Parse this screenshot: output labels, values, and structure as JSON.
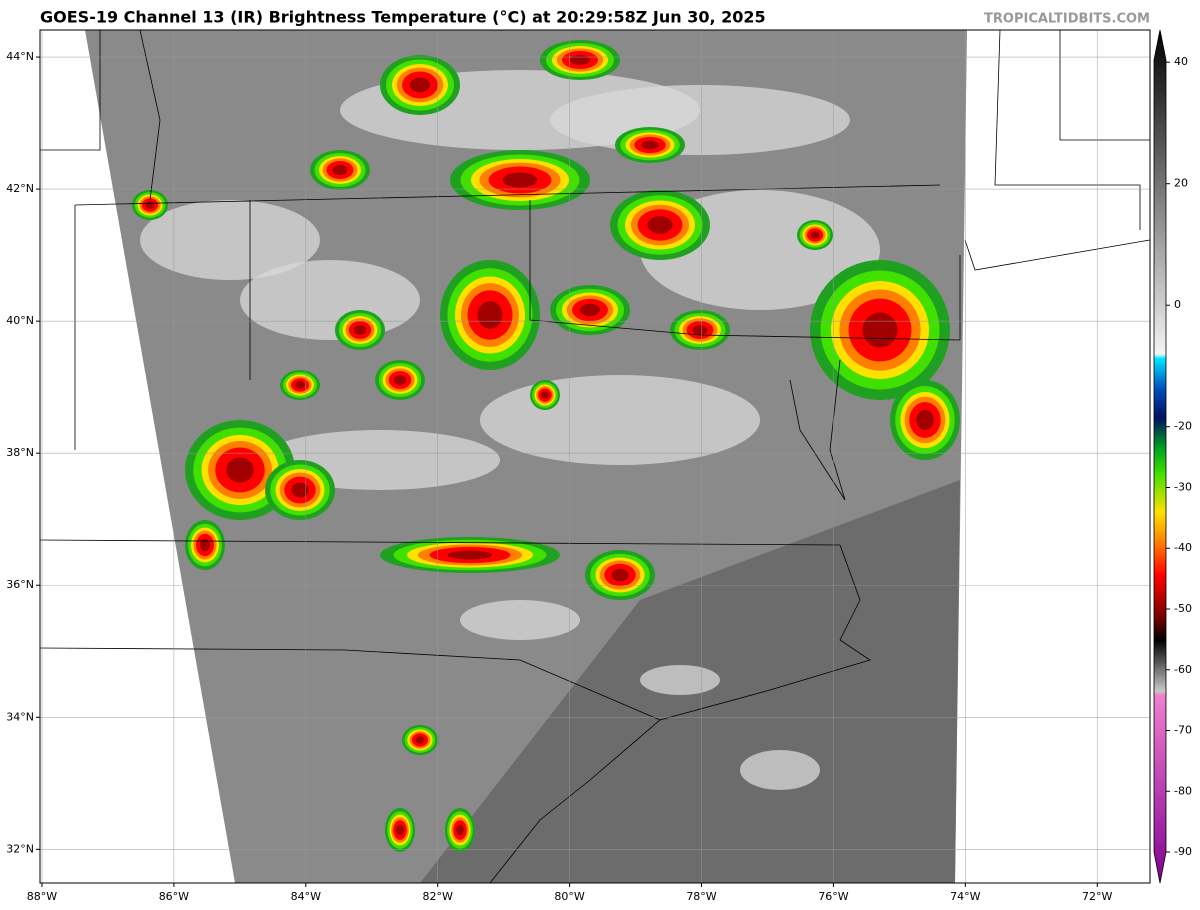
{
  "header": {
    "title": "GOES-19 Channel 13 (IR) Brightness Temperature (°C) at 20:29:58Z Jun 30, 2025",
    "credit": "TROPICALTIDBITS.COM"
  },
  "map": {
    "lonlim": [
      -88.03,
      -71.2
    ],
    "latlim": [
      31.49,
      44.41
    ],
    "lon_ticks": [
      {
        "value": -88,
        "label": "88°W"
      },
      {
        "value": -86,
        "label": "86°W"
      },
      {
        "value": -84,
        "label": "84°W"
      },
      {
        "value": -82,
        "label": "82°W"
      },
      {
        "value": -80,
        "label": "80°W"
      },
      {
        "value": -78,
        "label": "78°W"
      },
      {
        "value": -76,
        "label": "76°W"
      },
      {
        "value": -74,
        "label": "74°W"
      },
      {
        "value": -72,
        "label": "72°W"
      }
    ],
    "lat_ticks": [
      {
        "value": 32,
        "label": "32°N"
      },
      {
        "value": 34,
        "label": "34°N"
      },
      {
        "value": 36,
        "label": "36°N"
      },
      {
        "value": 38,
        "label": "38°N"
      },
      {
        "value": 40,
        "label": "40°N"
      },
      {
        "value": 42,
        "label": "42°N"
      },
      {
        "value": 44,
        "label": "44°N"
      }
    ]
  },
  "colorbar": {
    "lim": [
      -95.1,
      45.3
    ],
    "ticks": [
      40,
      20,
      0,
      -20,
      -30,
      -40,
      -50,
      -60,
      -70,
      -80,
      -90
    ]
  }
}
